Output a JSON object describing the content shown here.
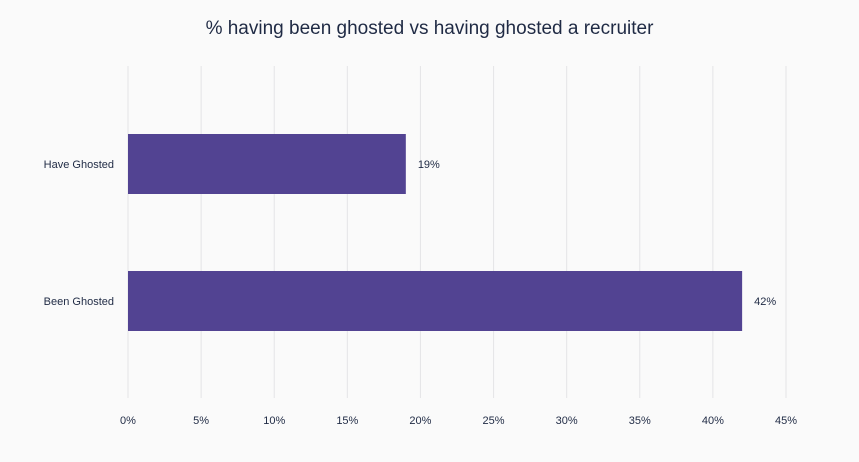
{
  "chart_data": {
    "type": "bar",
    "orientation": "horizontal",
    "title": "% having been ghosted vs having ghosted a recruiter",
    "categories": [
      "Have Ghosted",
      "Been Ghosted"
    ],
    "values": [
      19,
      42
    ],
    "data_labels": [
      "19%",
      "42%"
    ],
    "xlim": [
      0,
      45
    ],
    "x_ticks": [
      0,
      5,
      10,
      15,
      20,
      25,
      30,
      35,
      40,
      45
    ],
    "x_tick_labels": [
      "0%",
      "5%",
      "10%",
      "15%",
      "20%",
      "25%",
      "30%",
      "35%",
      "40%",
      "45%"
    ],
    "xlabel": "",
    "ylabel": "",
    "grid": true,
    "legend": "none",
    "bar_color": "#524392"
  }
}
